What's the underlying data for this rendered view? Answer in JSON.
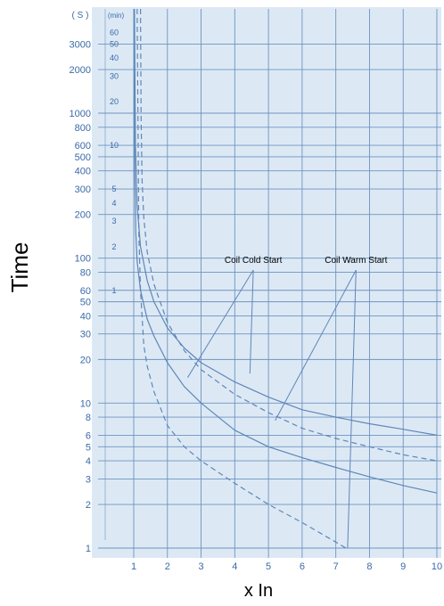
{
  "chart_data": {
    "type": "line",
    "title": "",
    "xlabel": "x In",
    "ylabel": "Time",
    "y_unit_seconds": "( S )",
    "y_unit_minutes": "(min)",
    "x_scale": "linear",
    "y_scale": "log",
    "xlim": [
      0.1,
      10
    ],
    "ylim": [
      0.9,
      6000
    ],
    "grid": true,
    "x_ticks": [
      1,
      2,
      3,
      4,
      5,
      6,
      7,
      8,
      9,
      10
    ],
    "x_tick_labels": [
      "1",
      "2",
      "3",
      "4",
      "5",
      "6",
      "7",
      "8",
      "9",
      "10"
    ],
    "y_ticks_seconds": [
      3000,
      2000,
      1000,
      800,
      600,
      500,
      400,
      300,
      200,
      100,
      80,
      60,
      50,
      40,
      30,
      20,
      10,
      8,
      6,
      5,
      4,
      3,
      2,
      1
    ],
    "y_tick_labels_seconds": [
      "3000",
      "2000",
      "1000",
      "800",
      "600",
      "500",
      "400",
      "300",
      "200",
      "100",
      "80",
      "60",
      "50",
      "40",
      "30",
      "20",
      "10",
      "8",
      "6",
      "5",
      "4",
      "3",
      "2",
      "1"
    ],
    "y_ticks_minutes": [
      60,
      50,
      40,
      30,
      20,
      10,
      5,
      4,
      3,
      2,
      1
    ],
    "y_tick_labels_minutes": [
      "60",
      "50",
      "40",
      "30",
      "20",
      "10",
      "5",
      "4",
      "3",
      "2",
      "1"
    ],
    "series": [
      {
        "style": "solid",
        "x": [
          1.02,
          1.05,
          1.1,
          1.2,
          1.4,
          1.6,
          2.0,
          2.5,
          3.0,
          4.0,
          5.0,
          6.0,
          7.0,
          8.0,
          9.0,
          10.0
        ],
        "y": [
          6000,
          600,
          230,
          120,
          70,
          50,
          33,
          24,
          19,
          14,
          11,
          9,
          8,
          7.2,
          6.6,
          6.0
        ]
      },
      {
        "style": "solid",
        "x": [
          1.01,
          1.03,
          1.06,
          1.1,
          1.2,
          1.4,
          1.6,
          2.0,
          2.5,
          3.0,
          4.0,
          5.0,
          6.0,
          7.0,
          8.0,
          9.0,
          10.0
        ],
        "y": [
          6000,
          400,
          150,
          95,
          60,
          38,
          29,
          19,
          13,
          10,
          6.5,
          5,
          4.2,
          3.6,
          3.1,
          2.7,
          2.4
        ]
      },
      {
        "style": "dashed",
        "x": [
          1.2,
          1.22,
          1.25,
          1.3,
          1.4,
          1.6,
          2.0,
          2.5,
          3.0,
          4.0,
          5.0,
          6.0,
          7.0,
          8.0,
          9.0,
          10.0
        ],
        "y": [
          6000,
          900,
          340,
          190,
          110,
          66,
          36,
          23,
          17,
          11.5,
          8.6,
          6.7,
          5.7,
          5.0,
          4.4,
          4.0
        ]
      },
      {
        "style": "dashed",
        "x": [
          1.1,
          1.15,
          1.2,
          1.3,
          1.4,
          1.6,
          2.0,
          2.5,
          3.0,
          4.0,
          5.0,
          6.0,
          7.0,
          7.3
        ],
        "y": [
          6000,
          150,
          60,
          25,
          18,
          12,
          7,
          5,
          4,
          2.8,
          2.0,
          1.5,
          1.1,
          1.0
        ]
      }
    ],
    "annotations": [
      {
        "text": "Coil Cold Start",
        "targets": [
          [
            2.6,
            15
          ],
          [
            4.45,
            16
          ]
        ]
      },
      {
        "text": "Coil Warm Start",
        "targets": [
          [
            5.2,
            7.6
          ],
          [
            7.35,
            1.0
          ]
        ]
      }
    ],
    "colors": {
      "plot_background": "#dce9f5",
      "grid": "#6f93bf",
      "curves": "#5f86b8",
      "axis_text": "#3a6aa8",
      "annotation_text": "#000000",
      "title_text": "#000000"
    }
  }
}
